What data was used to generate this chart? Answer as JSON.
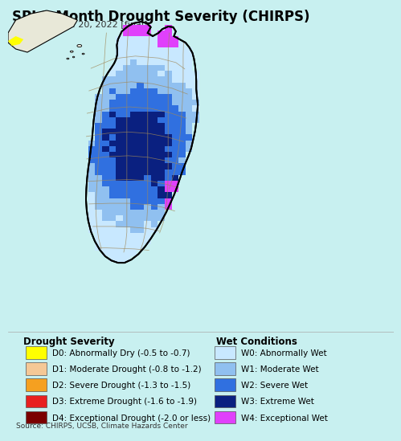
{
  "title": "SPI 1-Month Drought Severity (CHIRPS)",
  "subtitle": "Aug. 21 - Sep. 20, 2022 [final]",
  "source_text": "Source: CHIRPS, UCSB, Climate Hazards Center",
  "background_color": "#c8f0f0",
  "drought_labels": [
    "D0: Abnormally Dry (-0.5 to -0.7)",
    "D1: Moderate Drought (-0.8 to -1.2)",
    "D2: Severe Drought (-1.3 to -1.5)",
    "D3: Extreme Drought (-1.6 to -1.9)",
    "D4: Exceptional Drought (-2.0 or less)"
  ],
  "drought_colors": [
    "#ffff00",
    "#f5c896",
    "#f5a020",
    "#e82020",
    "#7b0000"
  ],
  "wet_labels": [
    "W0: Abnormally Wet",
    "W1: Moderate Wet",
    "W2: Severe Wet",
    "W3: Extreme Wet",
    "W4: Exceptional Wet"
  ],
  "wet_colors": [
    "#c8e8ff",
    "#90c0f0",
    "#3070e0",
    "#0a2080",
    "#e040fb"
  ],
  "title_fontsize": 12,
  "subtitle_fontsize": 8,
  "legend_fontsize": 7.5,
  "legend_title_fontsize": 8.5,
  "source_fontsize": 6.5
}
